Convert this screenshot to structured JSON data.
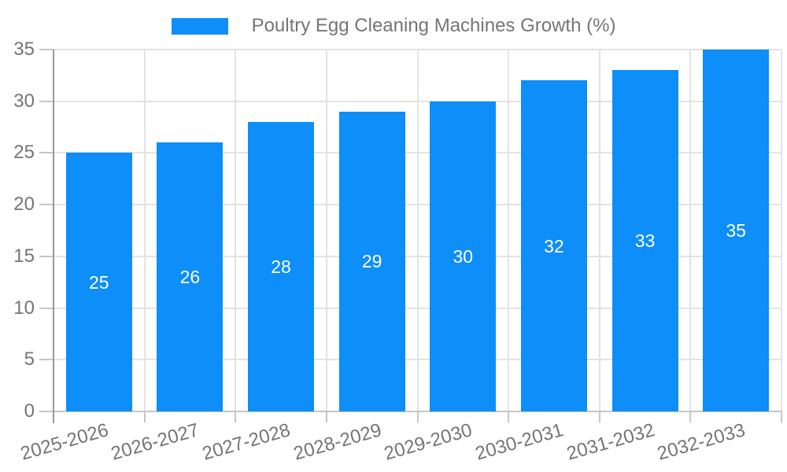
{
  "legend": {
    "label": "Poultry Egg Cleaning Machines Growth (%)"
  },
  "colors": {
    "bar": "#0d8ef8",
    "axis_text": "#757575",
    "grid": "#e3e3e3",
    "y_axis_line": "#9a9a9a",
    "x_axis_line": "#c6c6c6",
    "tick": "#c6c6c6",
    "value_label": "#ffffff",
    "background": "#ffffff"
  },
  "chart_data": {
    "type": "bar",
    "title": "Poultry Egg Cleaning Machines Growth (%)",
    "series_name": "Poultry Egg Cleaning Machines Growth (%)",
    "categories": [
      "2025-2026",
      "2026-2027",
      "2027-2028",
      "2028-2029",
      "2029-2030",
      "2030-2031",
      "2031-2032",
      "2032-2033"
    ],
    "values": [
      25,
      26,
      28,
      29,
      30,
      32,
      33,
      35
    ],
    "xlabel": "",
    "ylabel": "",
    "ylim": [
      0,
      35
    ],
    "yticks": [
      0,
      5,
      10,
      15,
      20,
      25,
      30,
      35
    ],
    "grid": true,
    "legend_position": "top-center",
    "value_labels_position": "inside-center",
    "x_label_rotation_deg": -16
  }
}
